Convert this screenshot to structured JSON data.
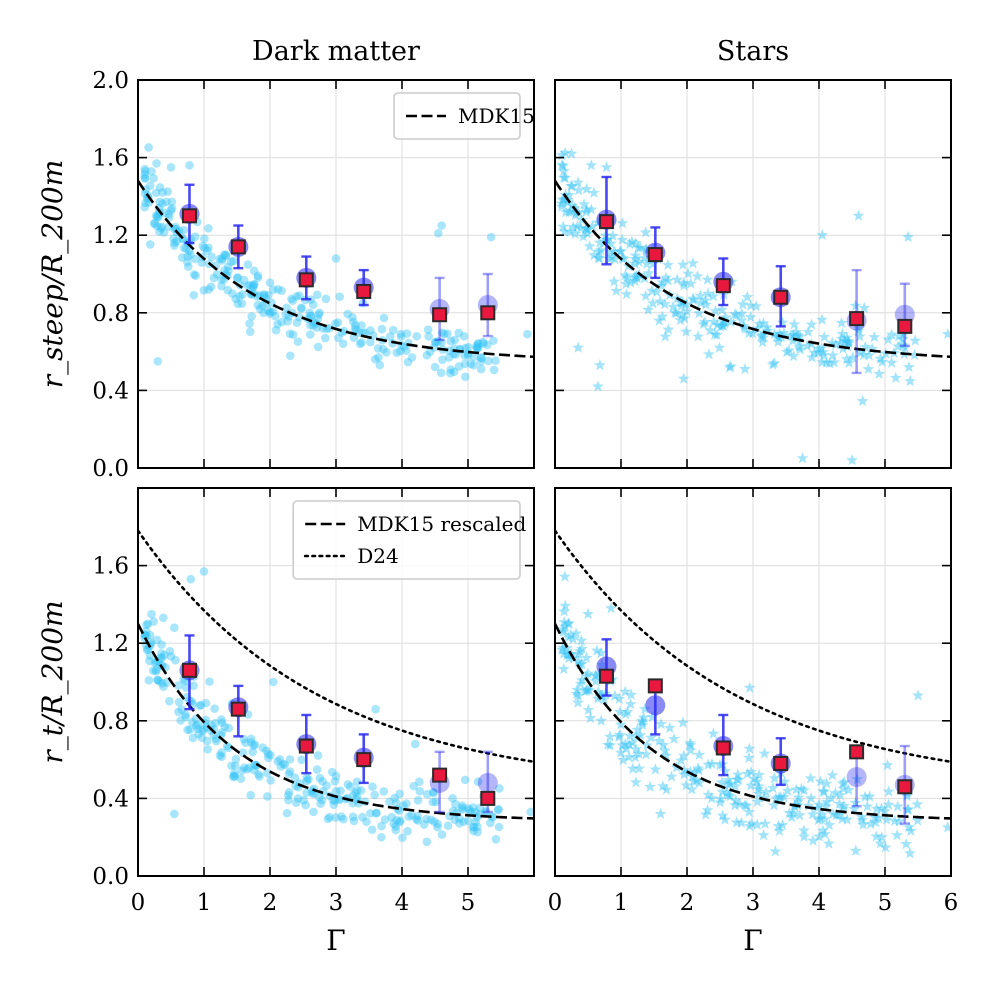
{
  "figure": {
    "x_label": "Γ",
    "y_label_top": "r_steep/R_200m",
    "y_label_bottom": "r_t/R_200m",
    "colors": {
      "scatter": "#33c3f5",
      "binned_circle": "#2a2af0",
      "binned_square": "#e8183e",
      "square_edge": "#2b2b2b",
      "curve": "#000000",
      "grid": "#dddddd"
    }
  },
  "chart_data": [
    {
      "panel": "top-left",
      "type": "scatter",
      "title": "Dark matter",
      "xlabel": "",
      "ylabel": "r_steep/R_200m",
      "xlim": [
        0,
        6
      ],
      "ylim": [
        0,
        2
      ],
      "xticks": [],
      "yticks": [
        "0.0",
        "0.4",
        "0.8",
        "1.2",
        "1.6",
        "2.0"
      ],
      "marker": "circle",
      "legend": {
        "placement": "top-right",
        "entries": [
          {
            "label": "MDK15",
            "style": "dashed"
          }
        ]
      },
      "curves": [
        {
          "name": "MDK15",
          "style": "dashed",
          "a": 0.54,
          "b": 0.94,
          "c": 0.69
        }
      ],
      "binned_circles": [
        {
          "x": 0.78,
          "y": 1.31,
          "lo": 1.16,
          "hi": 1.46,
          "faded": false
        },
        {
          "x": 1.52,
          "y": 1.14,
          "lo": 1.03,
          "hi": 1.25,
          "faded": false
        },
        {
          "x": 2.55,
          "y": 0.98,
          "lo": 0.87,
          "hi": 1.09,
          "faded": false
        },
        {
          "x": 3.42,
          "y": 0.93,
          "lo": 0.84,
          "hi": 1.02,
          "faded": false
        },
        {
          "x": 4.57,
          "y": 0.82,
          "lo": 0.66,
          "hi": 0.98,
          "faded": true
        },
        {
          "x": 5.3,
          "y": 0.84,
          "lo": 0.68,
          "hi": 1.0,
          "faded": true
        }
      ],
      "binned_squares": [
        {
          "x": 0.78,
          "y": 1.3
        },
        {
          "x": 1.52,
          "y": 1.14
        },
        {
          "x": 2.55,
          "y": 0.97
        },
        {
          "x": 3.42,
          "y": 0.91
        },
        {
          "x": 4.57,
          "y": 0.79
        },
        {
          "x": 5.3,
          "y": 0.8
        }
      ],
      "scatter_outliers": [
        {
          "x": 0.28,
          "y": 1.57
        },
        {
          "x": 0.5,
          "y": 1.55
        },
        {
          "x": 0.78,
          "y": 1.56
        },
        {
          "x": 0.3,
          "y": 0.55
        },
        {
          "x": 4.6,
          "y": 1.25
        },
        {
          "x": 4.55,
          "y": 1.21
        },
        {
          "x": 5.35,
          "y": 1.19
        },
        {
          "x": 2.6,
          "y": 0.8
        },
        {
          "x": 4.8,
          "y": 0.66
        },
        {
          "x": 5.9,
          "y": 0.69
        },
        {
          "x": 1.9,
          "y": 0.8
        },
        {
          "x": 3.0,
          "y": 1.08
        }
      ]
    },
    {
      "panel": "top-right",
      "type": "scatter",
      "title": "Stars",
      "xlabel": "",
      "ylabel": "",
      "xlim": [
        0,
        6
      ],
      "ylim": [
        0,
        2
      ],
      "xticks": [],
      "yticks": [],
      "marker": "star",
      "curves": [
        {
          "name": "MDK15",
          "style": "dashed",
          "a": 0.54,
          "b": 0.94,
          "c": 0.69
        }
      ],
      "binned_circles": [
        {
          "x": 0.78,
          "y": 1.28,
          "lo": 1.05,
          "hi": 1.5,
          "faded": false
        },
        {
          "x": 1.52,
          "y": 1.11,
          "lo": 0.98,
          "hi": 1.24,
          "faded": false
        },
        {
          "x": 2.55,
          "y": 0.96,
          "lo": 0.84,
          "hi": 1.08,
          "faded": false
        },
        {
          "x": 3.42,
          "y": 0.88,
          "lo": 0.73,
          "hi": 1.04,
          "faded": false
        },
        {
          "x": 4.57,
          "y": 0.76,
          "lo": 0.49,
          "hi": 1.02,
          "faded": true
        },
        {
          "x": 5.3,
          "y": 0.79,
          "lo": 0.63,
          "hi": 0.95,
          "faded": true
        }
      ],
      "binned_squares": [
        {
          "x": 0.78,
          "y": 1.27
        },
        {
          "x": 1.52,
          "y": 1.1
        },
        {
          "x": 2.55,
          "y": 0.94
        },
        {
          "x": 3.42,
          "y": 0.88
        },
        {
          "x": 4.57,
          "y": 0.77
        },
        {
          "x": 5.3,
          "y": 0.73
        }
      ],
      "scatter_outliers": [
        {
          "x": 0.25,
          "y": 1.62
        },
        {
          "x": 0.55,
          "y": 1.56
        },
        {
          "x": 0.78,
          "y": 1.55
        },
        {
          "x": 0.35,
          "y": 0.62
        },
        {
          "x": 0.68,
          "y": 0.53
        },
        {
          "x": 0.65,
          "y": 0.42
        },
        {
          "x": 1.95,
          "y": 0.46
        },
        {
          "x": 3.75,
          "y": 0.05
        },
        {
          "x": 4.5,
          "y": 0.04
        },
        {
          "x": 4.6,
          "y": 1.3
        },
        {
          "x": 4.05,
          "y": 1.2
        },
        {
          "x": 5.35,
          "y": 1.19
        },
        {
          "x": 3.7,
          "y": 0.65
        },
        {
          "x": 5.3,
          "y": 0.62
        },
        {
          "x": 5.95,
          "y": 0.69
        }
      ]
    },
    {
      "panel": "bottom-left",
      "type": "scatter",
      "title": "",
      "xlabel": "Γ",
      "ylabel": "r_t/R_200m",
      "xlim": [
        0,
        6
      ],
      "ylim": [
        0,
        2
      ],
      "xticks": [
        "0",
        "1",
        "2",
        "3",
        "4",
        "5"
      ],
      "yticks": [
        "0.0",
        "0.4",
        "0.8",
        "1.2",
        "1.6"
      ],
      "marker": "circle",
      "legend": {
        "placement": "top-right",
        "entries": [
          {
            "label": "MDK15 rescaled",
            "style": "dashed"
          },
          {
            "label": "D24",
            "style": "dotted"
          }
        ]
      },
      "curves": [
        {
          "name": "MDK15 rescaled",
          "style": "dashed",
          "a": 0.28,
          "b": 1.02,
          "c": 0.56
        },
        {
          "name": "D24",
          "style": "dotted",
          "a": 0.44,
          "b": 1.34,
          "c": 1.05
        }
      ],
      "binned_circles": [
        {
          "x": 0.78,
          "y": 1.06,
          "lo": 0.86,
          "hi": 1.24,
          "faded": false
        },
        {
          "x": 1.52,
          "y": 0.87,
          "lo": 0.72,
          "hi": 0.98,
          "faded": false
        },
        {
          "x": 2.55,
          "y": 0.68,
          "lo": 0.53,
          "hi": 0.83,
          "faded": false
        },
        {
          "x": 3.42,
          "y": 0.61,
          "lo": 0.48,
          "hi": 0.73,
          "faded": false
        },
        {
          "x": 4.57,
          "y": 0.48,
          "lo": 0.33,
          "hi": 0.64,
          "faded": true
        },
        {
          "x": 5.3,
          "y": 0.48,
          "lo": 0.33,
          "hi": 0.64,
          "faded": true
        }
      ],
      "binned_squares": [
        {
          "x": 0.78,
          "y": 1.06
        },
        {
          "x": 1.52,
          "y": 0.86
        },
        {
          "x": 2.55,
          "y": 0.67
        },
        {
          "x": 3.42,
          "y": 0.6
        },
        {
          "x": 4.57,
          "y": 0.52
        },
        {
          "x": 5.3,
          "y": 0.4
        }
      ],
      "scatter_outliers": [
        {
          "x": 0.15,
          "y": 1.3
        },
        {
          "x": 0.55,
          "y": 1.28
        },
        {
          "x": 0.8,
          "y": 1.53
        },
        {
          "x": 1.0,
          "y": 1.57
        },
        {
          "x": 0.55,
          "y": 0.32
        },
        {
          "x": 5.95,
          "y": 0.33
        },
        {
          "x": 4.8,
          "y": 0.29
        },
        {
          "x": 3.6,
          "y": 0.86
        },
        {
          "x": 2.05,
          "y": 1.0
        },
        {
          "x": 4.2,
          "y": 0.68
        }
      ]
    },
    {
      "panel": "bottom-right",
      "type": "scatter",
      "title": "",
      "xlabel": "Γ",
      "ylabel": "",
      "xlim": [
        0,
        6
      ],
      "ylim": [
        0,
        2
      ],
      "xticks": [
        "0",
        "1",
        "2",
        "3",
        "4",
        "5",
        "6"
      ],
      "yticks": [],
      "marker": "star",
      "curves": [
        {
          "name": "MDK15 rescaled",
          "style": "dashed",
          "a": 0.28,
          "b": 1.02,
          "c": 0.56
        },
        {
          "name": "D24",
          "style": "dotted",
          "a": 0.44,
          "b": 1.34,
          "c": 1.05
        }
      ],
      "binned_circles": [
        {
          "x": 0.78,
          "y": 1.08,
          "lo": 0.93,
          "hi": 1.22,
          "faded": false
        },
        {
          "x": 1.52,
          "y": 0.88,
          "lo": 0.73,
          "hi": 1.0,
          "faded": false
        },
        {
          "x": 2.55,
          "y": 0.67,
          "lo": 0.52,
          "hi": 0.83,
          "faded": false
        },
        {
          "x": 3.42,
          "y": 0.58,
          "lo": 0.47,
          "hi": 0.71,
          "faded": false
        },
        {
          "x": 4.57,
          "y": 0.51,
          "lo": 0.36,
          "hi": 0.66,
          "faded": true
        },
        {
          "x": 5.3,
          "y": 0.47,
          "lo": 0.27,
          "hi": 0.67,
          "faded": true
        }
      ],
      "binned_squares": [
        {
          "x": 0.78,
          "y": 1.03
        },
        {
          "x": 1.52,
          "y": 0.98
        },
        {
          "x": 2.55,
          "y": 0.66
        },
        {
          "x": 3.42,
          "y": 0.58
        },
        {
          "x": 4.57,
          "y": 0.64
        },
        {
          "x": 5.3,
          "y": 0.46
        }
      ],
      "scatter_outliers": [
        {
          "x": 0.2,
          "y": 1.3
        },
        {
          "x": 0.5,
          "y": 1.35
        },
        {
          "x": 0.85,
          "y": 1.38
        },
        {
          "x": 0.7,
          "y": 0.8
        },
        {
          "x": 5.5,
          "y": 0.93
        },
        {
          "x": 4.95,
          "y": 0.2
        },
        {
          "x": 5.95,
          "y": 0.25
        },
        {
          "x": 2.9,
          "y": 0.36
        },
        {
          "x": 4.9,
          "y": 0.3
        },
        {
          "x": 1.6,
          "y": 0.32
        },
        {
          "x": 2.95,
          "y": 0.97
        }
      ]
    }
  ]
}
